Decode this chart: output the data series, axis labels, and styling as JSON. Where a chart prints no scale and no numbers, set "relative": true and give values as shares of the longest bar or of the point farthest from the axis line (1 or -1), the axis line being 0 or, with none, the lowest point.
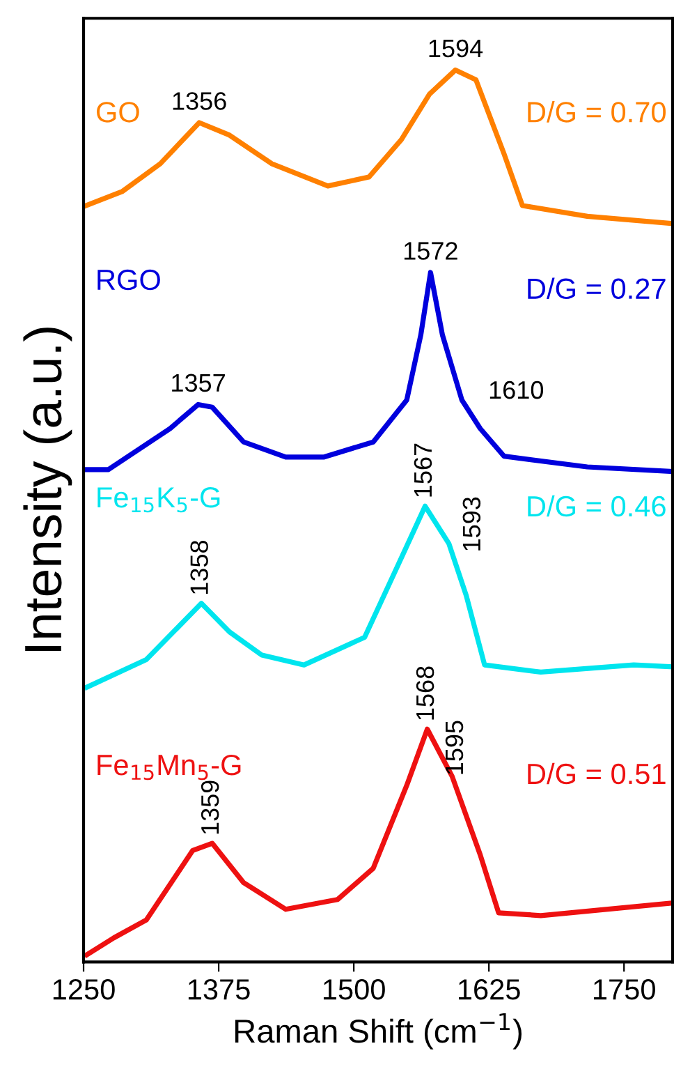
{
  "chart_data": {
    "type": "line",
    "relative": true,
    "xlabel": "Raman Shift (cm$^{−1}$)",
    "ylabel": "Intensity (a.u.)",
    "xlim": [
      1250,
      1795
    ],
    "xticks": [
      1250,
      1375,
      1500,
      1625,
      1750
    ],
    "tick_labels": "x",
    "grid": false,
    "legend": false,
    "series": [
      {
        "name": "GO",
        "color": "#ff8000",
        "x": [
          1250,
          1286,
          1321,
          1357,
          1385,
          1424,
          1476,
          1514,
          1544,
          1570,
          1594,
          1613,
          1639,
          1656,
          1716,
          1794
        ],
        "values": [
          0.847,
          0.864,
          0.895,
          0.941,
          0.927,
          0.895,
          0.87,
          0.88,
          0.922,
          0.973,
          1.0,
          0.989,
          0.906,
          0.848,
          0.836,
          0.828
        ]
      },
      {
        "name": "RGO",
        "color": "#0000dd",
        "x": [
          1253,
          1273,
          1330,
          1356,
          1369,
          1398,
          1437,
          1472,
          1518,
          1549,
          1562,
          1571,
          1582,
          1600,
          1617,
          1639,
          1716,
          1794
        ],
        "values": [
          0.552,
          0.552,
          0.598,
          0.625,
          0.622,
          0.583,
          0.566,
          0.566,
          0.583,
          0.63,
          0.703,
          0.773,
          0.703,
          0.63,
          0.598,
          0.567,
          0.555,
          0.55
        ]
      },
      {
        "name": "Fe$_{15}$K$_{5}$-G",
        "color": "#00e5ee",
        "x": [
          1253,
          1308,
          1359,
          1385,
          1415,
          1454,
          1510,
          1544,
          1566,
          1588,
          1604,
          1621,
          1673,
          1759,
          1794
        ],
        "values": [
          0.308,
          0.339,
          0.402,
          0.37,
          0.344,
          0.333,
          0.364,
          0.453,
          0.511,
          0.469,
          0.411,
          0.333,
          0.325,
          0.333,
          0.331
        ]
      },
      {
        "name": "Fe$_{15}$Mn$_{5}$-G",
        "color": "#ee1111",
        "x": [
          1253,
          1278,
          1308,
          1351,
          1369,
          1398,
          1437,
          1485,
          1518,
          1549,
          1568,
          1591,
          1617,
          1634,
          1673,
          1794
        ],
        "values": [
          0.008,
          0.027,
          0.047,
          0.125,
          0.133,
          0.089,
          0.059,
          0.07,
          0.105,
          0.198,
          0.261,
          0.208,
          0.12,
          0.055,
          0.052,
          0.066
        ]
      }
    ],
    "annotations": [
      "D/G = 0.70",
      "D/G = 0.27",
      "D/G = 0.46",
      "D/G = 0.51",
      {
        "text": "1356",
        "x": 1357,
        "y": 0.941
      },
      {
        "text": "1594",
        "x": 1594,
        "y": 1.0
      },
      {
        "text": "1357",
        "x": 1356,
        "y": 0.625
      },
      {
        "text": "1572",
        "x": 1571,
        "y": 0.773
      },
      {
        "text": "1610",
        "x": 1610,
        "y": 0.617
      },
      {
        "text": "1358",
        "x": 1359,
        "y": 0.402
      },
      {
        "text": "1567",
        "x": 1566,
        "y": 0.511
      },
      {
        "text": "1593",
        "x": 1593,
        "y": 0.455
      },
      {
        "text": "1359",
        "x": 1369,
        "y": 0.133
      },
      {
        "text": "1568",
        "x": 1568,
        "y": 0.261
      },
      {
        "text": "1595",
        "x": 1595,
        "y": 0.2
      }
    ]
  }
}
